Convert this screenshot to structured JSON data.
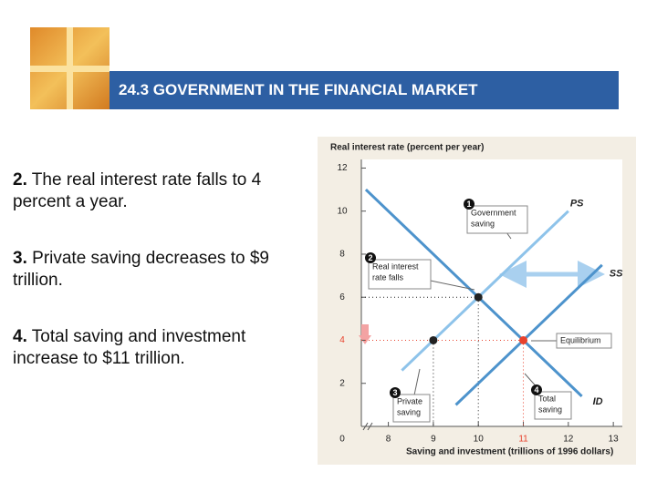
{
  "header": {
    "title": "24.3 GOVERNMENT IN THE FINANCIAL MARKET"
  },
  "bullets": [
    {
      "number": "2.",
      "text": "The real interest rate falls to 4 percent a year."
    },
    {
      "number": "3.",
      "text": "Private saving decreases to $9 trillion."
    },
    {
      "number": "4.",
      "text": "Total saving and investment increase to $11 trillion."
    }
  ],
  "chart_data": {
    "type": "line",
    "y_label": "Real interest rate (percent per year)",
    "x_label": "Saving and investment (trillions of 1996 dollars)",
    "xlim": [
      7.4,
      13.2
    ],
    "ylim": [
      0,
      12.4
    ],
    "xticks": [
      8,
      9,
      10,
      11,
      12,
      13
    ],
    "yticks": [
      0,
      2,
      4,
      6,
      8,
      10,
      12
    ],
    "series": [
      {
        "name": "PS",
        "color": "#8ec3ea",
        "x": [
          8.3,
          12
        ],
        "values": [
          2.6,
          10
        ]
      },
      {
        "name": "SS",
        "color": "#4d93cc",
        "x": [
          9.5,
          12.75
        ],
        "values": [
          1,
          7.5
        ]
      },
      {
        "name": "ID",
        "color": "#4d93cc",
        "x": [
          7.5,
          12.3
        ],
        "values": [
          11,
          1.4
        ]
      }
    ],
    "points": [
      {
        "x": 9,
        "y": 4,
        "color": "#222222"
      },
      {
        "x": 10,
        "y": 6,
        "color": "#222222"
      },
      {
        "x": 11,
        "y": 4,
        "color": "#e8412c"
      }
    ],
    "annotations": [
      {
        "number": "1",
        "lines": [
          "Government",
          "saving"
        ]
      },
      {
        "number": "2",
        "lines": [
          "Real interest",
          "rate falls"
        ]
      },
      {
        "number": "3",
        "lines": [
          "Private",
          "saving"
        ]
      },
      {
        "number": "4",
        "lines": [
          "Total",
          "saving"
        ]
      },
      {
        "lines": [
          "Equilibrium"
        ]
      }
    ]
  }
}
